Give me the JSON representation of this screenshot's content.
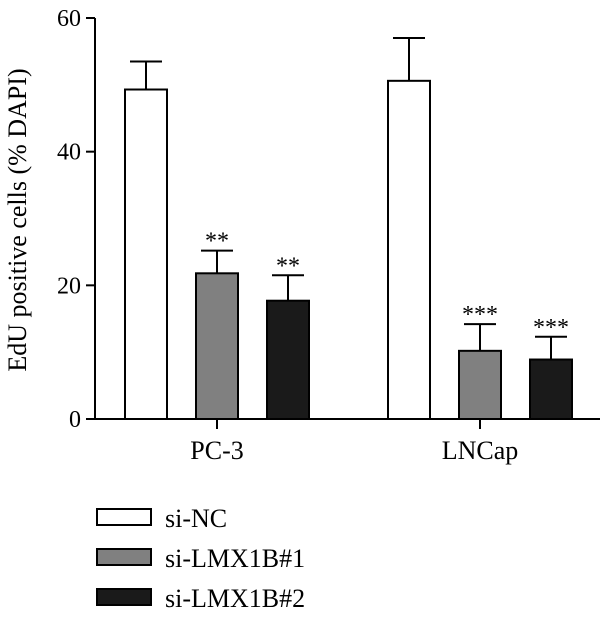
{
  "chart_data": {
    "type": "bar",
    "ylabel": "EdU positive cells (% DAPI)",
    "xlabel": "",
    "ylim": [
      0,
      60
    ],
    "yticks": [
      0,
      20,
      40,
      60
    ],
    "categories": [
      "PC-3",
      "LNCap"
    ],
    "series": [
      {
        "name": "si-NC",
        "values": [
          49.3,
          50.6
        ],
        "errors": [
          4.2,
          6.4
        ],
        "significance": [
          "",
          ""
        ],
        "fill": "#ffffff"
      },
      {
        "name": "si-LMX1B#1",
        "values": [
          21.8,
          10.2
        ],
        "errors": [
          3.4,
          4.0
        ],
        "significance": [
          "**",
          "***"
        ],
        "fill": "#808080"
      },
      {
        "name": "si-LMX1B#2",
        "values": [
          17.7,
          8.9
        ],
        "errors": [
          3.8,
          3.4
        ],
        "significance": [
          "**",
          "***"
        ],
        "fill": "#1a1a1a"
      }
    ],
    "legend_position": "bottom-left",
    "grid": false
  }
}
